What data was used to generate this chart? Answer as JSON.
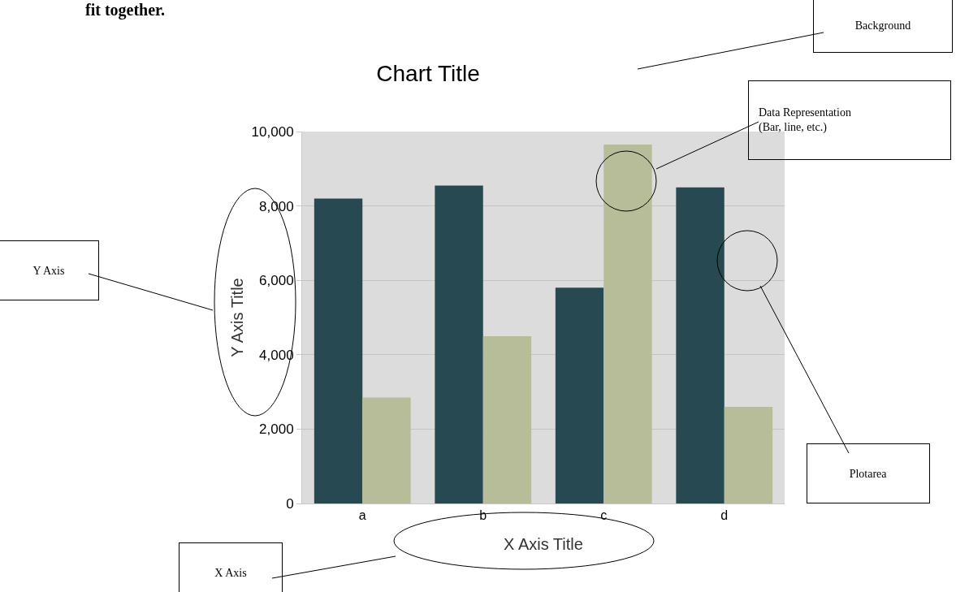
{
  "chart_data": {
    "type": "bar",
    "title": "Chart Title",
    "xlabel": "X Axis Title",
    "ylabel": "Y Axis Title",
    "categories": [
      "a",
      "b",
      "c",
      "d"
    ],
    "series": [
      {
        "color": "#274a52",
        "values": [
          8200,
          8550,
          5800,
          8500
        ]
      },
      {
        "color": "#b8bd99",
        "values": [
          2850,
          4500,
          9650,
          2600
        ]
      }
    ],
    "ylim": [
      0,
      10000
    ],
    "yticks": [
      {
        "value": 0,
        "label": "0"
      },
      {
        "value": 2000,
        "label": "2,000"
      },
      {
        "value": 4000,
        "label": "4,000"
      },
      {
        "value": 6000,
        "label": "6,000"
      },
      {
        "value": 8000,
        "label": "8,000"
      },
      {
        "value": 10000,
        "label": "10,000"
      }
    ],
    "grid": "y",
    "annotations": [
      "fit together.",
      "Background",
      "Data Representation\n(Bar, line, etc.)",
      "Y Axis",
      "Plotarea",
      "X Axis"
    ]
  }
}
